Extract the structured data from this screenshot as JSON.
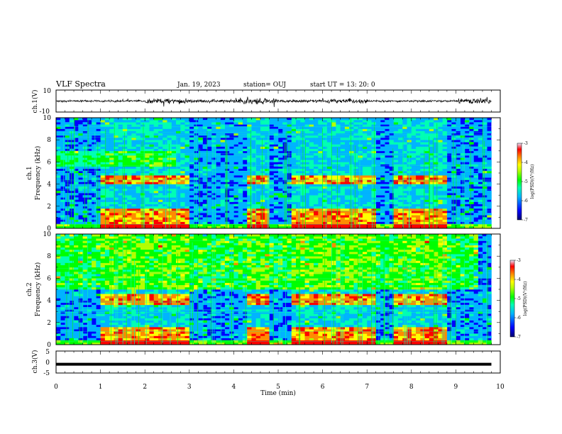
{
  "header": {
    "title": "VLF Spectra",
    "date": "Jan. 19, 2023",
    "station": "station= OUJ",
    "start_time": "start  UT =   13: 20: 0"
  },
  "colors": {
    "colormap": [
      "#00006e",
      "#0000ff",
      "#00b4ff",
      "#00ffb4",
      "#00ff00",
      "#b4ff00",
      "#ffff00",
      "#ff8c00",
      "#ff0000",
      "#e6e6ff"
    ],
    "background": "#ffffff",
    "trace": "#000000"
  },
  "chart_data": [
    {
      "type": "line",
      "panel": "ch1-waveform",
      "ylabel": "ch.1(V)",
      "ylim": [
        -10,
        10
      ],
      "yticks": [
        "10",
        "-10"
      ],
      "xlim": [
        0,
        10
      ],
      "description_series": {
        "x_min": [
          0,
          10
        ],
        "amplitude_envelope": [
          2,
          2,
          5,
          3,
          6,
          3,
          4,
          2,
          2,
          5,
          2
        ]
      }
    },
    {
      "type": "heatmap",
      "panel": "ch1-spectrogram",
      "ylabel": "ch.1\nFrequency (kHz)",
      "ylim": [
        0,
        10
      ],
      "yticks": [
        "0",
        "2",
        "4",
        "6",
        "8",
        "10"
      ],
      "xlim": [
        0,
        9.8
      ],
      "colorbar": {
        "label": "log(PSD)(V²/Hz)",
        "range": [
          -7,
          -3
        ],
        "ticks": [
          "-3",
          "-4",
          "-5",
          "-6",
          "-7"
        ]
      },
      "active_intervals_min": [
        [
          1.0,
          2.95
        ],
        [
          4.35,
          4.8
        ],
        [
          5.3,
          7.15
        ],
        [
          7.65,
          8.8
        ]
      ],
      "band_frequencies_khz": [
        4.4,
        1.4,
        0.5
      ],
      "background_band_khz": [
        5.5,
        7.0
      ]
    },
    {
      "type": "heatmap",
      "panel": "ch2-spectrogram",
      "ylabel": "ch.2\nFrequency (kHz)",
      "ylim": [
        0,
        10
      ],
      "yticks": [
        "0",
        "2",
        "4",
        "6",
        "8",
        "10"
      ],
      "xlim": [
        0,
        9.8
      ],
      "colorbar": {
        "label": "log(PSD)(V²/Hz)",
        "range": [
          -7,
          -3
        ],
        "ticks": [
          "-3",
          "-4",
          "-5",
          "-6",
          "-7"
        ]
      },
      "active_intervals_min": [
        [
          1.0,
          2.95
        ],
        [
          4.35,
          4.8
        ],
        [
          5.3,
          7.15
        ],
        [
          7.65,
          8.8
        ]
      ],
      "band_frequencies_khz": [
        4.1,
        1.2,
        0.4
      ]
    },
    {
      "type": "line",
      "panel": "ch3-waveform",
      "ylabel": "ch.3(V)",
      "ylim": [
        -5,
        5
      ],
      "yticks": [
        "5",
        "0",
        "-5"
      ],
      "xlim": [
        0,
        10
      ],
      "series": [
        {
          "x": [
            0,
            9.8
          ],
          "y": [
            -1,
            -1
          ]
        }
      ]
    }
  ],
  "xaxis": {
    "label": "Time (min)",
    "ticks": [
      "0",
      "1",
      "2",
      "3",
      "4",
      "5",
      "6",
      "7",
      "8",
      "9",
      "10"
    ],
    "range": [
      0,
      10
    ]
  }
}
